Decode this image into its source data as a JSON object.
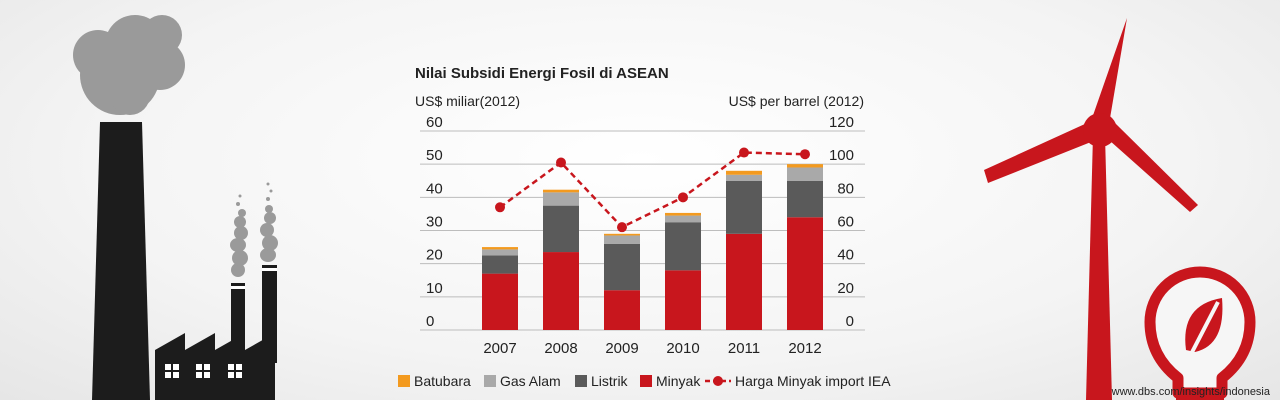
{
  "chart_data": {
    "type": "bar",
    "title": "Nilai Subsidi Energi Fosil di ASEAN",
    "ylabel_left": "US$ miliar(2012)",
    "ylabel_right": "US$ per barrel (2012)",
    "categories": [
      "2007",
      "2008",
      "2009",
      "2010",
      "2011",
      "2012"
    ],
    "ylim_left": [
      0,
      60
    ],
    "ylim_right": [
      0,
      120
    ],
    "yticks_left": [
      0,
      10,
      20,
      30,
      40,
      50,
      60
    ],
    "yticks_right": [
      0,
      20,
      40,
      60,
      80,
      100,
      120
    ],
    "grid": true,
    "legend_position": "bottom",
    "stacked": true,
    "series": [
      {
        "name": "Minyak",
        "color": "#c8161d",
        "values": [
          17,
          23.5,
          12,
          18,
          29,
          34
        ]
      },
      {
        "name": "Listrik",
        "color": "#5a5a5a",
        "values": [
          5.5,
          14,
          14,
          14.5,
          16,
          11
        ]
      },
      {
        "name": "Gas Alam",
        "color": "#a9a9a9",
        "values": [
          1.8,
          4,
          2.5,
          2,
          1.8,
          4
        ]
      },
      {
        "name": "Batubara",
        "color": "#f39a1f",
        "values": [
          0.7,
          0.8,
          0.5,
          0.8,
          1.2,
          1
        ]
      }
    ],
    "line_series": {
      "name": "Harga Minyak import IEA",
      "color": "#c8161d",
      "axis": "right",
      "values": [
        74,
        101,
        62,
        80,
        107,
        106
      ]
    },
    "legend_order": [
      "Batubara",
      "Gas Alam",
      "Listrik",
      "Minyak",
      "Harga Minyak import IEA"
    ]
  },
  "footer": {
    "url": "www.dbs.com/insights/indonesia"
  }
}
